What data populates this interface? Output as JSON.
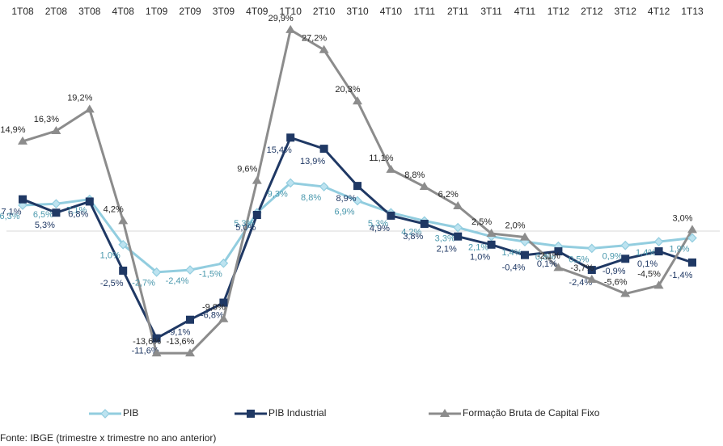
{
  "chart_data": {
    "type": "line",
    "categories": [
      "1T08",
      "2T08",
      "3T08",
      "4T08",
      "1T09",
      "2T09",
      "3T09",
      "4T09",
      "1T10",
      "2T10",
      "3T10",
      "4T10",
      "1T11",
      "2T11",
      "3T11",
      "4T11",
      "1T12",
      "2T12",
      "3T12",
      "4T12",
      "1T13"
    ],
    "ylim": [
      -20,
      32
    ],
    "series": [
      {
        "name": "PIB",
        "color": "#92cddf",
        "label_color": "#4a98ad",
        "marker": "diamond",
        "values": [
          6.3,
          6.5,
          7.1,
          1.0,
          -2.7,
          -2.4,
          -1.5,
          5.3,
          9.3,
          8.8,
          6.9,
          5.3,
          4.2,
          3.3,
          2.1,
          1.4,
          0.8,
          0.5,
          0.9,
          1.4,
          1.9
        ],
        "value_labels": [
          "6,3%",
          "6,5%",
          "7,1%",
          "1,0%",
          "-2,7%",
          "-2,4%",
          "-1,5%",
          "5,3%",
          "9,3%",
          "8,8%",
          "6,9%",
          "5,3%",
          "4,2%",
          "3,3%",
          "2,1%",
          "1,4%",
          "0,8%",
          "0,5%",
          "0,9%",
          "1,4%",
          "1,9%"
        ]
      },
      {
        "name": "PIB Industrial",
        "color": "#1f3864",
        "label_color": "#1f3864",
        "marker": "square",
        "values": [
          7.1,
          5.3,
          6.8,
          -2.5,
          -11.6,
          -9.1,
          -6.8,
          5.0,
          15.4,
          13.9,
          8.9,
          4.9,
          3.8,
          2.1,
          1.0,
          -0.4,
          0.1,
          -2.4,
          -0.9,
          0.1,
          -1.4
        ],
        "value_labels": [
          "7,1%",
          "5,3%",
          "6,8%",
          "-2,5%",
          "-11,6%",
          "-9,1%",
          "-6,8%",
          "5,0%",
          "15,4%",
          "13,9%",
          "8,9%",
          "4,9%",
          "3,8%",
          "2,1%",
          "1,0%",
          "-0,4%",
          "0,1%",
          "-2,4%",
          "-0,9%",
          "0,1%",
          "-1,4%"
        ]
      },
      {
        "name": "Formação Bruta de Capital Fixo",
        "color": "#8c8c8c",
        "label_color": "#262626",
        "marker": "triangle",
        "values": [
          14.9,
          16.3,
          19.2,
          4.2,
          -13.6,
          -13.6,
          -9.0,
          9.6,
          29.9,
          27.2,
          20.3,
          11.1,
          8.8,
          6.2,
          2.5,
          2.0,
          -2.1,
          -3.7,
          -5.6,
          -4.5,
          3.0
        ],
        "value_labels": [
          "14,9%",
          "16,3%",
          "19,2%",
          "4,2%",
          "-13,6%",
          "-13,6%",
          "-9,0%",
          "9,6%",
          "29,9%",
          "27,2%",
          "20,3%",
          "11,1%",
          "8,8%",
          "6,2%",
          "2,5%",
          "2,0%",
          "-2,1%",
          "-3,7%",
          "-5,6%",
          "-4,5%",
          "3,0%"
        ]
      }
    ],
    "source": "Fonte: IBGE (trimestre x trimestre no ano anterior)"
  }
}
